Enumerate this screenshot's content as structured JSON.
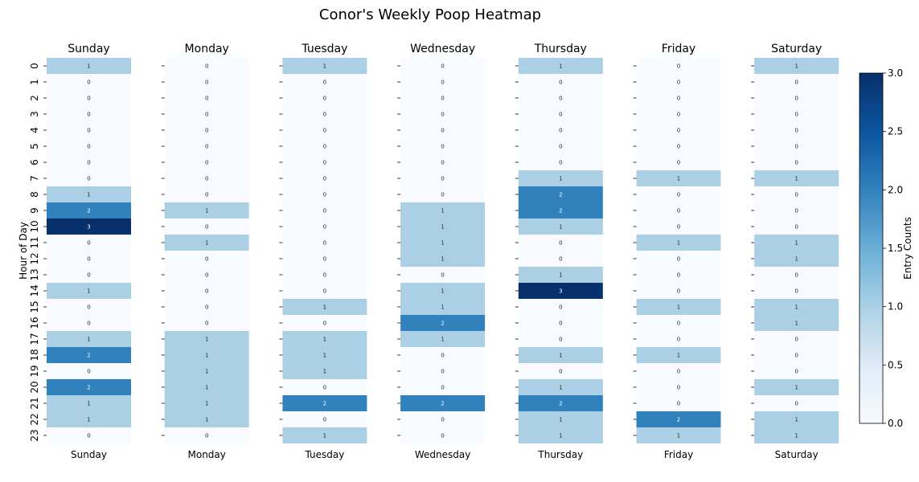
{
  "chart_data": {
    "type": "heatmap",
    "title": "Conor's Weekly Poop Heatmap",
    "ylabel": "Hour of Day",
    "colorbar_label": "Entry Counts",
    "hours": [
      "0",
      "1",
      "2",
      "3",
      "4",
      "5",
      "6",
      "7",
      "8",
      "9",
      "10",
      "11",
      "12",
      "13",
      "14",
      "15",
      "16",
      "17",
      "18",
      "19",
      "20",
      "21",
      "22",
      "23"
    ],
    "days": [
      {
        "name": "Sunday",
        "values": [
          1,
          0,
          0,
          0,
          0,
          0,
          0,
          0,
          1,
          2,
          3,
          0,
          0,
          0,
          1,
          0,
          0,
          1,
          2,
          0,
          2,
          1,
          1,
          0
        ]
      },
      {
        "name": "Monday",
        "values": [
          0,
          0,
          0,
          0,
          0,
          0,
          0,
          0,
          0,
          1,
          0,
          1,
          0,
          0,
          0,
          0,
          0,
          1,
          1,
          1,
          1,
          1,
          1,
          0
        ]
      },
      {
        "name": "Tuesday",
        "values": [
          1,
          0,
          0,
          0,
          0,
          0,
          0,
          0,
          0,
          0,
          0,
          0,
          0,
          0,
          0,
          1,
          0,
          1,
          1,
          1,
          0,
          2,
          0,
          1
        ]
      },
      {
        "name": "Wednesday",
        "values": [
          0,
          0,
          0,
          0,
          0,
          0,
          0,
          0,
          0,
          1,
          1,
          1,
          1,
          0,
          1,
          1,
          2,
          1,
          0,
          0,
          0,
          2,
          0,
          0
        ]
      },
      {
        "name": "Thursday",
        "values": [
          1,
          0,
          0,
          0,
          0,
          0,
          0,
          1,
          2,
          2,
          1,
          0,
          0,
          1,
          3,
          0,
          0,
          0,
          1,
          0,
          1,
          2,
          1,
          1
        ]
      },
      {
        "name": "Friday",
        "values": [
          0,
          0,
          0,
          0,
          0,
          0,
          0,
          1,
          0,
          0,
          0,
          1,
          0,
          0,
          0,
          1,
          0,
          0,
          1,
          0,
          0,
          0,
          2,
          1
        ]
      },
      {
        "name": "Saturday",
        "values": [
          1,
          0,
          0,
          0,
          0,
          0,
          0,
          1,
          0,
          0,
          0,
          1,
          1,
          0,
          0,
          1,
          1,
          0,
          0,
          0,
          1,
          0,
          1,
          1
        ]
      }
    ],
    "colorbar": {
      "min": 0,
      "max": 3,
      "ticks": [
        "0.0",
        "0.5",
        "1.0",
        "1.5",
        "2.0",
        "2.5",
        "3.0"
      ]
    },
    "colors": {
      "0": "#f7fbff",
      "1": "#abd0e6",
      "2": "#3181bd",
      "3": "#08306b"
    }
  }
}
